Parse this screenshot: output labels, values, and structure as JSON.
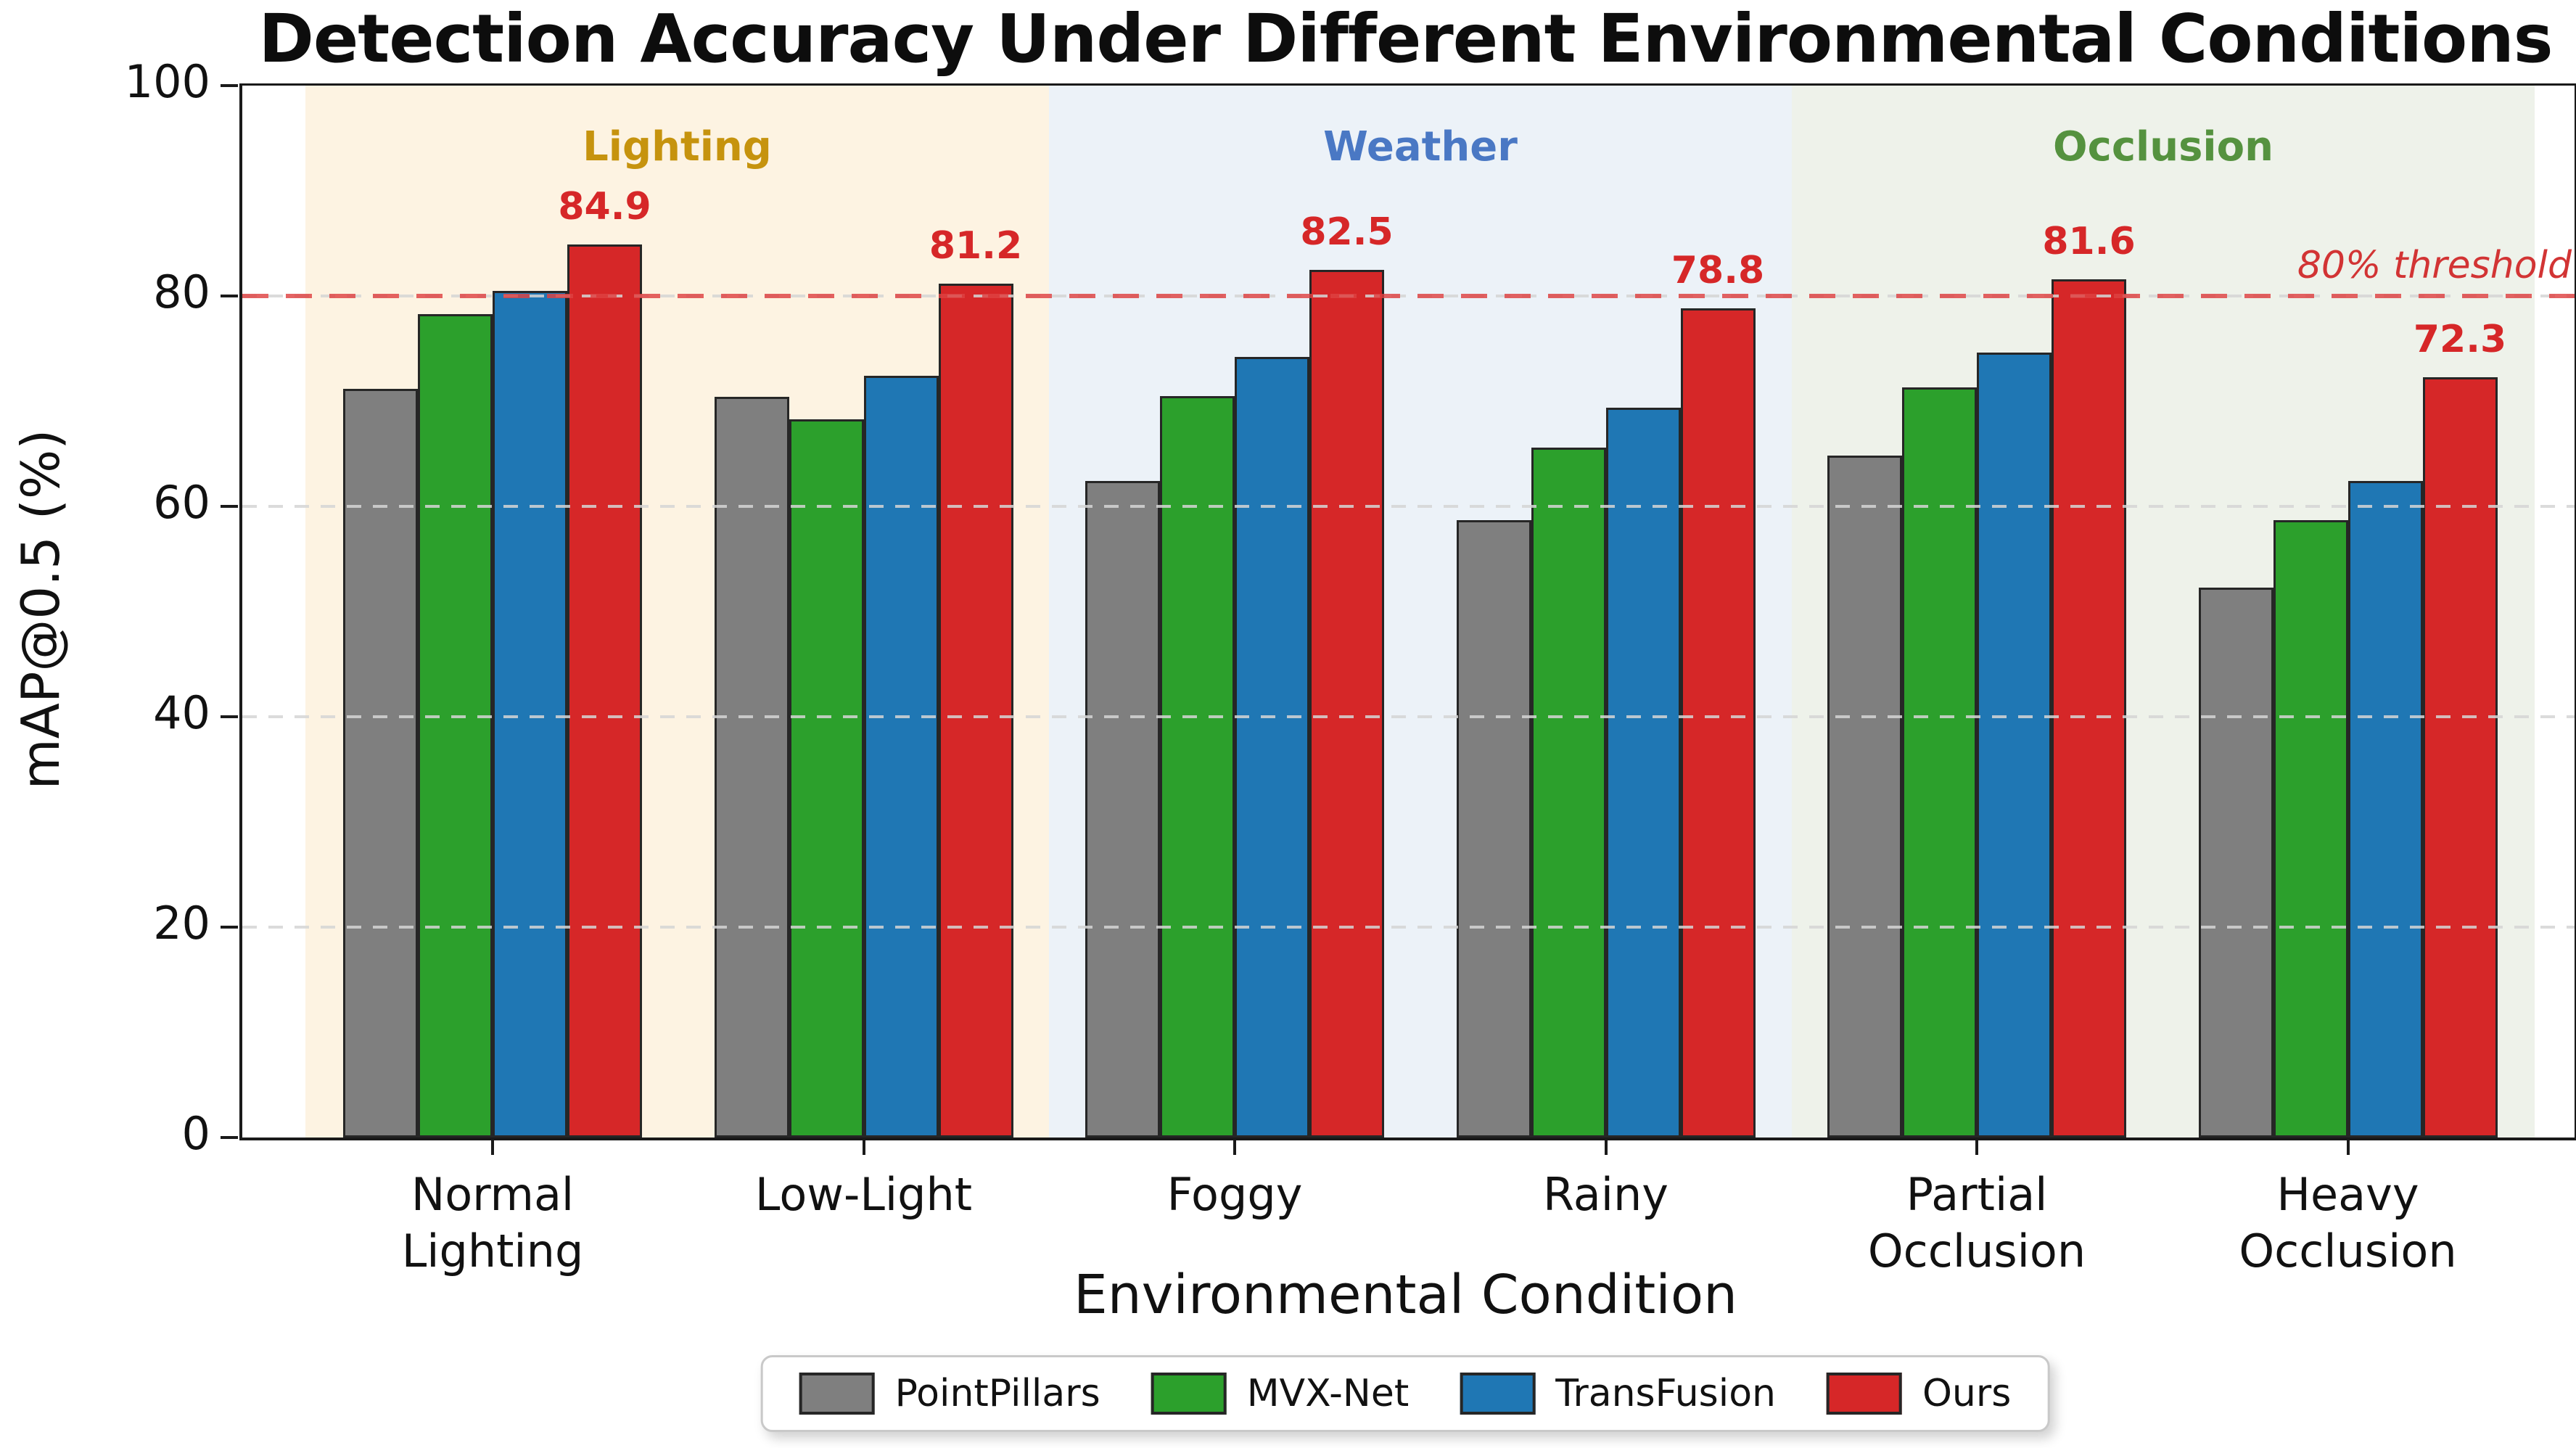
{
  "chart_data": {
    "type": "bar",
    "title": "Detection Accuracy Under Different Environmental Conditions",
    "xlabel": "Environmental Condition",
    "ylabel": "mAP@0.5 (%)",
    "ylim": [
      0,
      100
    ],
    "yticks": [
      0,
      20,
      40,
      60,
      80,
      100
    ],
    "gridlines": [
      20,
      40,
      60,
      80
    ],
    "grid_style": "dashed horizontal, light gray, drawn over bars",
    "legend_position": "bottom center",
    "categories": [
      "Normal\nLighting",
      "Low-Light",
      "Foggy",
      "Rainy",
      "Partial\nOcclusion",
      "Heavy\nOcclusion"
    ],
    "series": [
      {
        "name": "PointPillars",
        "color": "#7f7f7f",
        "values": [
          71.2,
          70.4,
          62.4,
          58.7,
          64.8,
          52.3
        ],
        "show_value_labels": false
      },
      {
        "name": "MVX-Net",
        "color": "#2ca02c",
        "values": [
          78.3,
          68.3,
          70.5,
          65.6,
          71.3,
          58.7
        ],
        "show_value_labels": false
      },
      {
        "name": "TransFusion",
        "color": "#1f77b4",
        "values": [
          80.5,
          72.4,
          74.2,
          69.4,
          74.6,
          62.4
        ],
        "show_value_labels": false
      },
      {
        "name": "Ours",
        "color": "#d62728",
        "values": [
          84.9,
          81.2,
          82.5,
          78.8,
          81.6,
          72.3
        ],
        "show_value_labels": true
      }
    ],
    "value_label_color": "#d62728",
    "bar_edge_color": "#262626",
    "threshold": {
      "value": 80,
      "label": "80% threshold",
      "line_color": "#de4141",
      "label_color": "#d23434"
    },
    "sections": [
      {
        "label": "Lighting",
        "text_color": "#c6930e",
        "bg": "#fdf3e2",
        "groups": [
          0,
          1
        ]
      },
      {
        "label": "Weather",
        "text_color": "#4a78c4",
        "bg": "#ecf2f8",
        "groups": [
          2,
          3
        ]
      },
      {
        "label": "Occlusion",
        "text_color": "#55923f",
        "bg": "#eef2ea",
        "groups": [
          4,
          5
        ]
      }
    ]
  }
}
